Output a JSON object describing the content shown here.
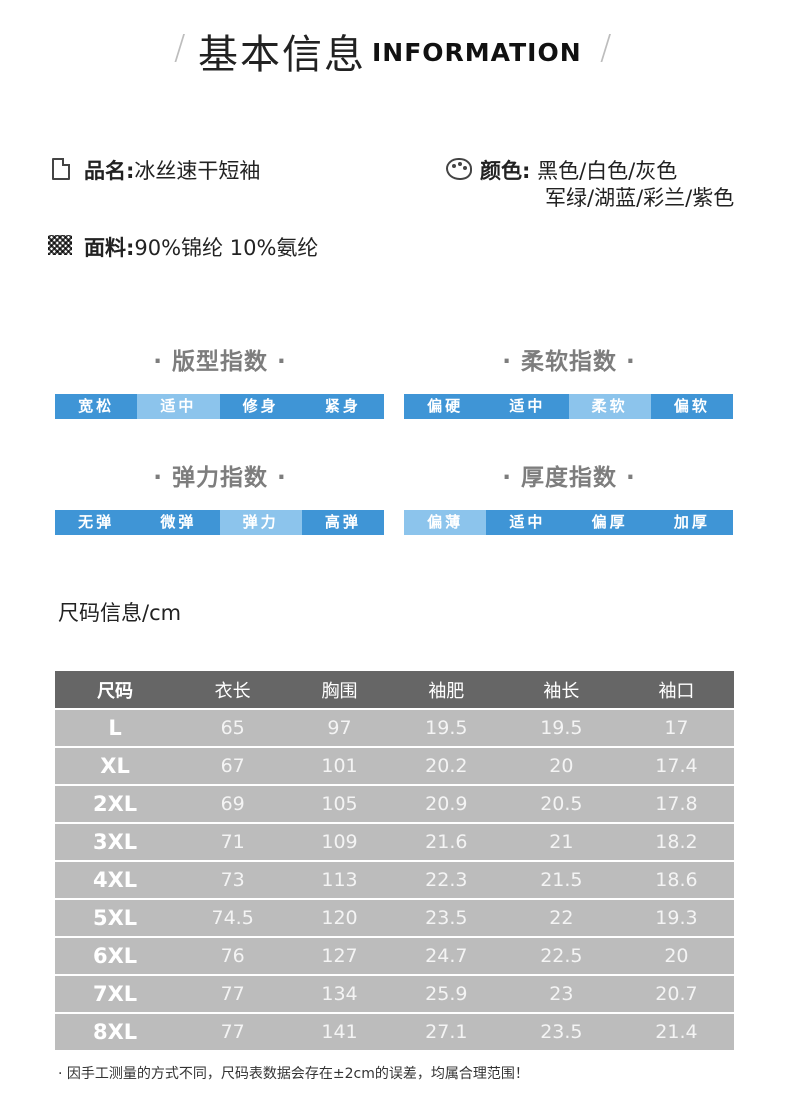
{
  "header": {
    "title_cn": "基本信息",
    "title_en": "INFORMATION",
    "slash": "/"
  },
  "info": {
    "name_label": "品名:",
    "name_value": "冰丝速干短袖",
    "fabric_label": "面料:",
    "fabric_value": "90%锦纶 10%氨纶",
    "color_label": "颜色:",
    "color_line1": "黑色/白色/灰色",
    "color_line2": "军绿/湖蓝/彩兰/紫色"
  },
  "indices": [
    {
      "title": "· 版型指数 ·",
      "options": [
        "宽松",
        "适中",
        "修身",
        "紧身"
      ],
      "selected": 1
    },
    {
      "title": "· 柔软指数 ·",
      "options": [
        "偏硬",
        "适中",
        "柔软",
        "偏软"
      ],
      "selected": 2
    },
    {
      "title": "· 弹力指数 ·",
      "options": [
        "无弹",
        "微弹",
        "弹力",
        "高弹"
      ],
      "selected": 2
    },
    {
      "title": "· 厚度指数 ·",
      "options": [
        "偏薄",
        "适中",
        "偏厚",
        "加厚"
      ],
      "selected": 0
    }
  ],
  "size_section": {
    "title": "尺码信息/cm",
    "headers": [
      "尺码",
      "衣长",
      "胸围",
      "袖肥",
      "袖长",
      "袖口"
    ],
    "rows": [
      [
        "L",
        "65",
        "97",
        "19.5",
        "19.5",
        "17"
      ],
      [
        "XL",
        "67",
        "101",
        "20.2",
        "20",
        "17.4"
      ],
      [
        "2XL",
        "69",
        "105",
        "20.9",
        "20.5",
        "17.8"
      ],
      [
        "3XL",
        "71",
        "109",
        "21.6",
        "21",
        "18.2"
      ],
      [
        "4XL",
        "73",
        "113",
        "22.3",
        "21.5",
        "18.6"
      ],
      [
        "5XL",
        "74.5",
        "120",
        "23.5",
        "22",
        "19.3"
      ],
      [
        "6XL",
        "76",
        "127",
        "24.7",
        "22.5",
        "20"
      ],
      [
        "7XL",
        "77",
        "134",
        "25.9",
        "23",
        "20.7"
      ],
      [
        "8XL",
        "77",
        "141",
        "27.1",
        "23.5",
        "21.4"
      ]
    ]
  },
  "note": "· 因手工测量的方式不同，尺码表数据会存在±2cm的误差，均属合理范围！",
  "colors": {
    "bar": "#3f95d6",
    "bar_selected": "#8cc4ec",
    "table_header": "#666666",
    "table_row": "#bcbcbc"
  }
}
